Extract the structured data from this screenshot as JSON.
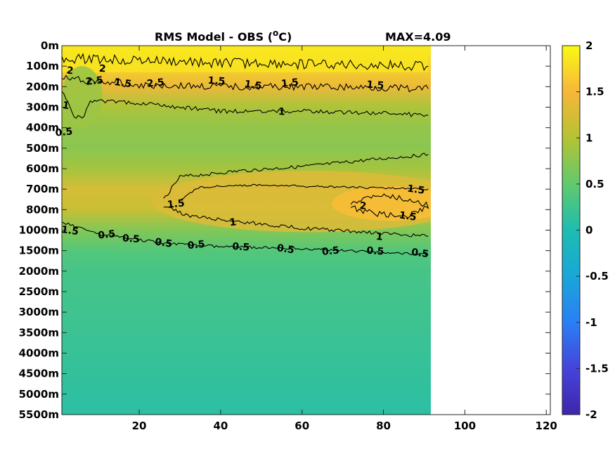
{
  "chart_data": {
    "type": "heatmap",
    "title": "RMS Model - OBS (",
    "title_unit_sup": "o",
    "title_unit_end": "C)",
    "annotation": "MAX=4.09",
    "xlim": [
      1,
      121
    ],
    "x_ticks": [
      "20",
      "40",
      "60",
      "80",
      "100",
      "120"
    ],
    "x_tick_values": [
      20,
      40,
      60,
      80,
      100,
      120
    ],
    "data_x_range": [
      1,
      91
    ],
    "y_tick_labels": [
      "0m",
      "100m",
      "200m",
      "300m",
      "400m",
      "500m",
      "600m",
      "700m",
      "800m",
      "1000m",
      "1500m",
      "2000m",
      "2500m",
      "3000m",
      "3500m",
      "4000m",
      "4500m",
      "5000m",
      "5500m"
    ],
    "y_axis_direction": "reversed",
    "colorbar": {
      "colormap": "parula",
      "limits": [
        -2,
        2
      ],
      "ticks": [
        "2",
        "1.5",
        "1",
        "0.5",
        "0",
        "-0.5",
        "-1",
        "-1.5",
        "-2"
      ],
      "tick_values": [
        2,
        1.5,
        1,
        0.5,
        0,
        -0.5,
        -1,
        -1.5,
        -2
      ]
    },
    "contour_levels": [
      0.5,
      1,
      1.5,
      2
    ],
    "field_profile": [
      {
        "depth": "0m",
        "value": 1.9
      },
      {
        "depth": "100m",
        "value": 1.7
      },
      {
        "depth": "200m",
        "value": 1.4
      },
      {
        "depth": "300m",
        "value": 0.95
      },
      {
        "depth": "400m",
        "value": 0.8
      },
      {
        "depth": "500m",
        "value": 0.75
      },
      {
        "depth": "600m",
        "value": 0.9
      },
      {
        "depth": "700m",
        "value": 1.25
      },
      {
        "depth": "800m",
        "value": 1.15
      },
      {
        "depth": "1000m",
        "value": 0.7
      },
      {
        "depth": "1500m",
        "value": 0.4
      },
      {
        "depth": "2000m",
        "value": 0.3
      },
      {
        "depth": "3000m",
        "value": 0.25
      },
      {
        "depth": "5500m",
        "value": 0.1
      }
    ],
    "contour_labels": [
      {
        "text": "2",
        "x": 3,
        "depth_index": 1.2
      },
      {
        "text": "2.5",
        "x": 9,
        "depth_index": 1.7
      },
      {
        "text": "2",
        "x": 11,
        "depth_index": 1.1
      },
      {
        "text": "1.5",
        "x": 16,
        "depth_index": 1.8
      },
      {
        "text": "2.5",
        "x": 24,
        "depth_index": 1.8
      },
      {
        "text": "1.5",
        "x": 39,
        "depth_index": 1.7
      },
      {
        "text": "1.5",
        "x": 48,
        "depth_index": 1.9
      },
      {
        "text": "1.5",
        "x": 57,
        "depth_index": 1.8
      },
      {
        "text": "1.5",
        "x": 78,
        "depth_index": 1.9
      },
      {
        "text": "1",
        "x": 2,
        "depth_index": 2.9
      },
      {
        "text": "0.5",
        "x": 1.5,
        "depth_index": 4.2
      },
      {
        "text": "1",
        "x": 55,
        "depth_index": 3.2
      },
      {
        "text": "1.5",
        "x": 88,
        "depth_index": 7.0
      },
      {
        "text": "1.5",
        "x": 29,
        "depth_index": 7.7
      },
      {
        "text": "2",
        "x": 75,
        "depth_index": 7.8
      },
      {
        "text": "1.5",
        "x": 86,
        "depth_index": 8.3
      },
      {
        "text": "1",
        "x": 43,
        "depth_index": 8.6
      },
      {
        "text": "1",
        "x": 79,
        "depth_index": 9.3
      },
      {
        "text": "1.5",
        "x": 3,
        "depth_index": 9.0
      },
      {
        "text": "0.5",
        "x": 12,
        "depth_index": 9.2
      },
      {
        "text": "0.5",
        "x": 18,
        "depth_index": 9.4
      },
      {
        "text": "0.5",
        "x": 26,
        "depth_index": 9.6
      },
      {
        "text": "0.5",
        "x": 34,
        "depth_index": 9.7
      },
      {
        "text": "0.5",
        "x": 45,
        "depth_index": 9.8
      },
      {
        "text": "0.5",
        "x": 56,
        "depth_index": 9.9
      },
      {
        "text": "0.5",
        "x": 67,
        "depth_index": 10.0
      },
      {
        "text": "0.5",
        "x": 78,
        "depth_index": 10.0
      },
      {
        "text": "0.5",
        "x": 89,
        "depth_index": 10.1
      }
    ]
  }
}
